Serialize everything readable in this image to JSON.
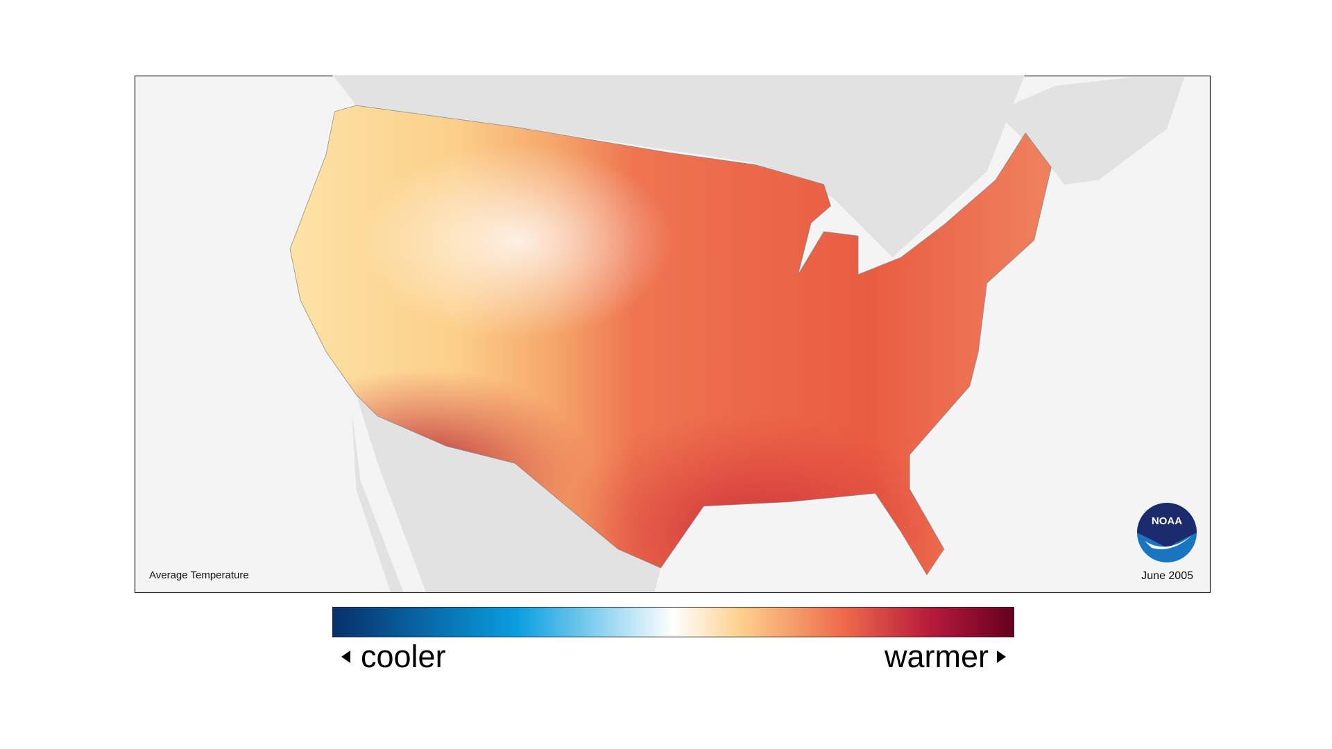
{
  "map": {
    "title": "Average Temperature",
    "date": "June 2005",
    "logo": "NOAA",
    "legend": {
      "low": "cooler",
      "high": "warmer"
    }
  }
}
